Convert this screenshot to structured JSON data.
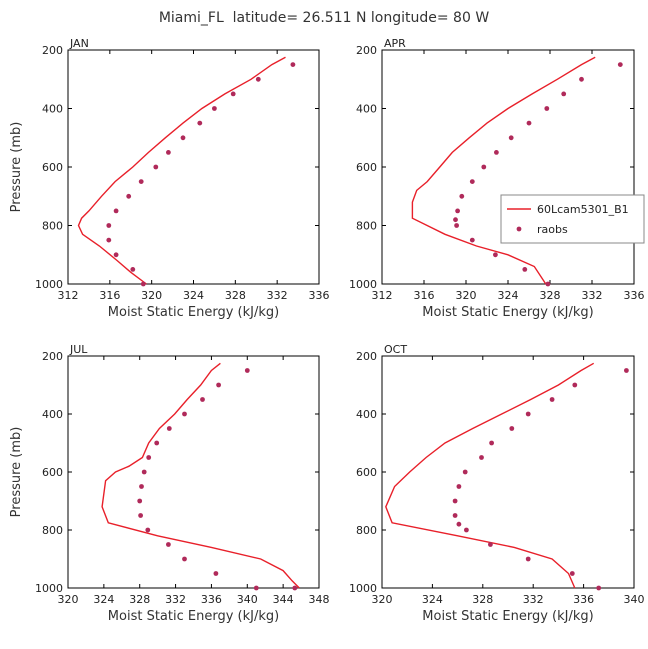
{
  "figure_title": "Miami_FL  latitude= 26.511 N longitude= 80 W",
  "colors": {
    "model": "#e8202a",
    "obs": "#b02a5a",
    "axis": "#000000"
  },
  "legend": {
    "model": "60Lcam5301_B1",
    "obs": "raobs",
    "panel": 1,
    "placement": "right"
  },
  "chart_data": [
    {
      "type": "line",
      "title": "JAN",
      "xlabel": "Moist Static Energy (kJ/kg)",
      "ylabel": "Pressure (mb)",
      "xlim": [
        312,
        336
      ],
      "xticks": [
        312,
        316,
        320,
        324,
        328,
        332,
        336
      ],
      "ylim": [
        200,
        1000
      ],
      "yticks": [
        200,
        400,
        600,
        800,
        1000
      ],
      "y_inverted": true,
      "series": [
        {
          "name": "60Lcam5301_B1",
          "style": "line",
          "x": [
            332.8,
            331.5,
            329.5,
            327.0,
            324.8,
            323.0,
            321.3,
            319.7,
            318.2,
            316.5,
            315.2,
            314.0,
            313.3,
            313.0,
            313.4,
            315.0,
            316.7,
            318.0,
            319.5
          ],
          "y": [
            225,
            250,
            300,
            350,
            400,
            450,
            500,
            550,
            600,
            650,
            700,
            750,
            775,
            800,
            830,
            870,
            920,
            960,
            1000
          ]
        },
        {
          "name": "raobs",
          "style": "markers",
          "x": [
            333.5,
            330.2,
            327.8,
            326.0,
            324.6,
            323.0,
            321.6,
            320.4,
            319.0,
            317.8,
            316.6,
            315.9,
            315.9,
            316.6,
            318.2,
            319.2
          ],
          "y": [
            250,
            300,
            350,
            400,
            450,
            500,
            550,
            600,
            650,
            700,
            750,
            800,
            850,
            900,
            950,
            1000
          ]
        }
      ]
    },
    {
      "type": "line",
      "title": "APR",
      "xlabel": "Moist Static Energy (kJ/kg)",
      "ylabel": "",
      "xlim": [
        312,
        336
      ],
      "xticks": [
        312,
        316,
        320,
        324,
        328,
        332,
        336
      ],
      "ylim": [
        200,
        1000
      ],
      "yticks": [
        200,
        400,
        600,
        800,
        1000
      ],
      "y_inverted": true,
      "series": [
        {
          "name": "60Lcam5301_B1",
          "style": "line",
          "x": [
            332.3,
            331.0,
            328.7,
            326.3,
            324.0,
            322.0,
            320.3,
            318.7,
            317.5,
            316.3,
            315.3,
            314.9,
            314.9,
            318.0,
            321.0,
            324.0,
            326.5,
            327.6
          ],
          "y": [
            225,
            250,
            300,
            350,
            400,
            450,
            500,
            550,
            600,
            650,
            680,
            720,
            775,
            830,
            870,
            900,
            940,
            1000
          ]
        },
        {
          "name": "raobs",
          "style": "markers",
          "x": [
            334.7,
            331.0,
            329.3,
            327.7,
            326.0,
            324.3,
            322.9,
            321.7,
            320.6,
            319.6,
            319.2,
            319.0,
            319.1,
            320.6,
            322.8,
            325.6,
            327.8
          ],
          "y": [
            250,
            300,
            350,
            400,
            450,
            500,
            550,
            600,
            650,
            700,
            750,
            780,
            800,
            850,
            900,
            950,
            1000
          ]
        }
      ]
    },
    {
      "type": "line",
      "title": "JUL",
      "xlabel": "Moist Static Energy (kJ/kg)",
      "ylabel": "Pressure (mb)",
      "xlim": [
        320,
        348
      ],
      "xticks": [
        320,
        324,
        328,
        332,
        336,
        340,
        344,
        348
      ],
      "ylim": [
        200,
        1000
      ],
      "yticks": [
        200,
        400,
        600,
        800,
        1000
      ],
      "y_inverted": true,
      "series": [
        {
          "name": "60Lcam5301_B1",
          "style": "line",
          "x": [
            337.0,
            336.0,
            334.8,
            333.3,
            331.9,
            330.2,
            329.0,
            328.3,
            326.8,
            325.3,
            324.2,
            323.8,
            324.5,
            330.0,
            336.0,
            341.5,
            344.0,
            345.0,
            345.8
          ],
          "y": [
            225,
            250,
            300,
            350,
            400,
            450,
            500,
            550,
            580,
            600,
            630,
            720,
            775,
            820,
            860,
            900,
            940,
            975,
            1000
          ]
        },
        {
          "name": "raobs",
          "style": "markers",
          "x": [
            340.0,
            336.8,
            335.0,
            333.0,
            331.3,
            329.9,
            329.0,
            328.5,
            328.2,
            328.0,
            328.1,
            328.9,
            331.2,
            333.0,
            336.5,
            341.0,
            345.3
          ],
          "y": [
            250,
            300,
            350,
            400,
            450,
            500,
            550,
            600,
            650,
            700,
            750,
            800,
            850,
            900,
            950,
            1000,
            1000
          ]
        }
      ]
    },
    {
      "type": "line",
      "title": "OCT",
      "xlabel": "Moist Static Energy (kJ/kg)",
      "ylabel": "",
      "xlim": [
        320,
        340
      ],
      "xticks": [
        320,
        324,
        328,
        332,
        336,
        340
      ],
      "ylim": [
        200,
        1000
      ],
      "yticks": [
        200,
        400,
        600,
        800,
        1000
      ],
      "y_inverted": true,
      "series": [
        {
          "name": "60Lcam5301_B1",
          "style": "line",
          "x": [
            336.8,
            335.8,
            334.0,
            331.8,
            329.5,
            327.2,
            325.0,
            323.5,
            322.2,
            321.0,
            320.3,
            320.8,
            326.0,
            330.5,
            333.5,
            334.8,
            335.3
          ],
          "y": [
            225,
            250,
            300,
            350,
            400,
            450,
            500,
            550,
            600,
            650,
            720,
            775,
            820,
            860,
            900,
            950,
            1000
          ]
        },
        {
          "name": "raobs",
          "style": "markers",
          "x": [
            339.4,
            335.3,
            333.5,
            331.6,
            330.3,
            328.7,
            327.9,
            326.6,
            326.1,
            325.8,
            325.8,
            326.1,
            326.7,
            328.6,
            331.6,
            335.1,
            337.2
          ],
          "y": [
            250,
            300,
            350,
            400,
            450,
            500,
            550,
            600,
            650,
            700,
            750,
            780,
            800,
            850,
            900,
            950,
            1000
          ]
        }
      ]
    }
  ]
}
